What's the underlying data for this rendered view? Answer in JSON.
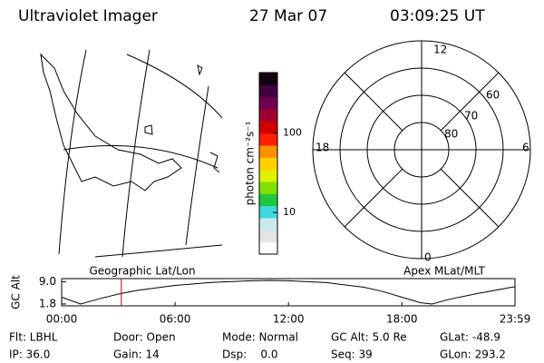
{
  "header": {
    "title": "Ultraviolet Imager",
    "date": "27 Mar 07",
    "time": "03:09:25 UT"
  },
  "map_label": "Geographic Lat/Lon",
  "polar": {
    "label": "Apex MLat/MLT",
    "hour_labels": [
      "12",
      "18",
      "6",
      "0"
    ],
    "lat_labels": [
      "60",
      "70",
      "80"
    ]
  },
  "colorbar": {
    "label": "photon cm⁻²s⁻¹",
    "log": true,
    "lim": [
      3,
      575
    ],
    "ticks": [
      10,
      100
    ],
    "colors": [
      "#ffffff",
      "#e4e4e4",
      "#c8e8ec",
      "#40d8e0",
      "#20c840",
      "#80e000",
      "#e0f000",
      "#ffd000",
      "#ff9000",
      "#ff2000",
      "#d00000",
      "#a00030",
      "#700050",
      "#400040",
      "#100010"
    ]
  },
  "chart_data": {
    "type": "line",
    "ylabel": "GC Alt",
    "x": [
      0,
      1,
      2,
      3,
      4,
      6,
      8,
      10,
      11,
      12,
      14,
      16,
      17,
      18,
      19,
      19.6,
      20.5,
      22,
      23.983
    ],
    "series": [
      {
        "color": "#000000",
        "values": [
          4.0,
          1.8,
          3.5,
          5.0,
          6.2,
          7.8,
          8.8,
          9.3,
          9.4,
          9.3,
          8.7,
          7.2,
          5.8,
          4.0,
          2.2,
          1.8,
          3.3,
          5.2,
          7.4
        ]
      }
    ],
    "xlim": [
      0,
      23.983
    ],
    "xticks": [
      {
        "value": 0,
        "label": "00:00"
      },
      {
        "value": 6,
        "label": "06:00"
      },
      {
        "value": 12,
        "label": "12:00"
      },
      {
        "value": 18,
        "label": "18:00"
      },
      {
        "value": 23.983,
        "label": "23:59"
      }
    ],
    "ylim": [
      1.2,
      10
    ],
    "yticks": [
      {
        "value": 1.8,
        "label": "1.8"
      },
      {
        "value": 9,
        "label": "9.0"
      }
    ],
    "marker_x": 3.157,
    "marker_color": "#c00000"
  },
  "info": [
    "Flt: LBHL",
    "Door: Open",
    "Mode: Normal",
    "GC Alt: 5.0 Re",
    "GLat: -48.9",
    "IP: 36.0",
    "Gain: 14",
    "Dsp:    0.0",
    "Seq: 39",
    "GLon: 293.2"
  ]
}
